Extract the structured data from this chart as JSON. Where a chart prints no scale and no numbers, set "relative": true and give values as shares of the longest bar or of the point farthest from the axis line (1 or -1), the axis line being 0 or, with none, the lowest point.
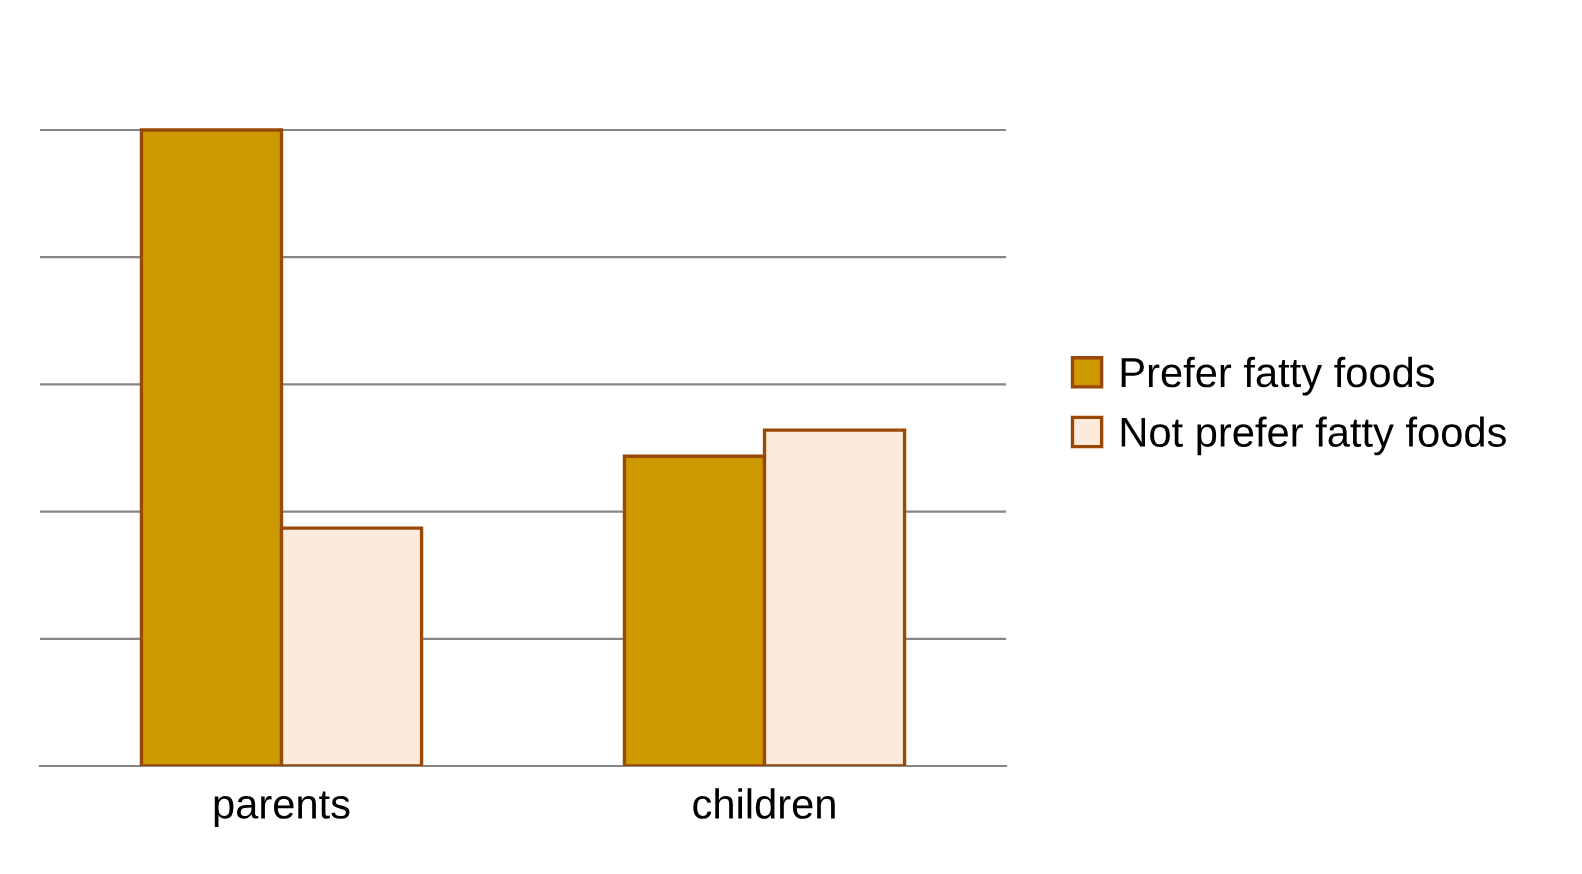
{
  "chart_data": {
    "type": "bar",
    "relative": true,
    "categories": [
      "parents",
      "children"
    ],
    "series": [
      {
        "name": "Prefer fatty foods",
        "color": "#cc9900",
        "values": [
          1,
          0.487
        ]
      },
      {
        "name": "Not prefer fatty foods",
        "color": "#fdeada",
        "values": [
          0.374,
          0.528
        ]
      }
    ],
    "grid": "y",
    "legend": "right"
  }
}
